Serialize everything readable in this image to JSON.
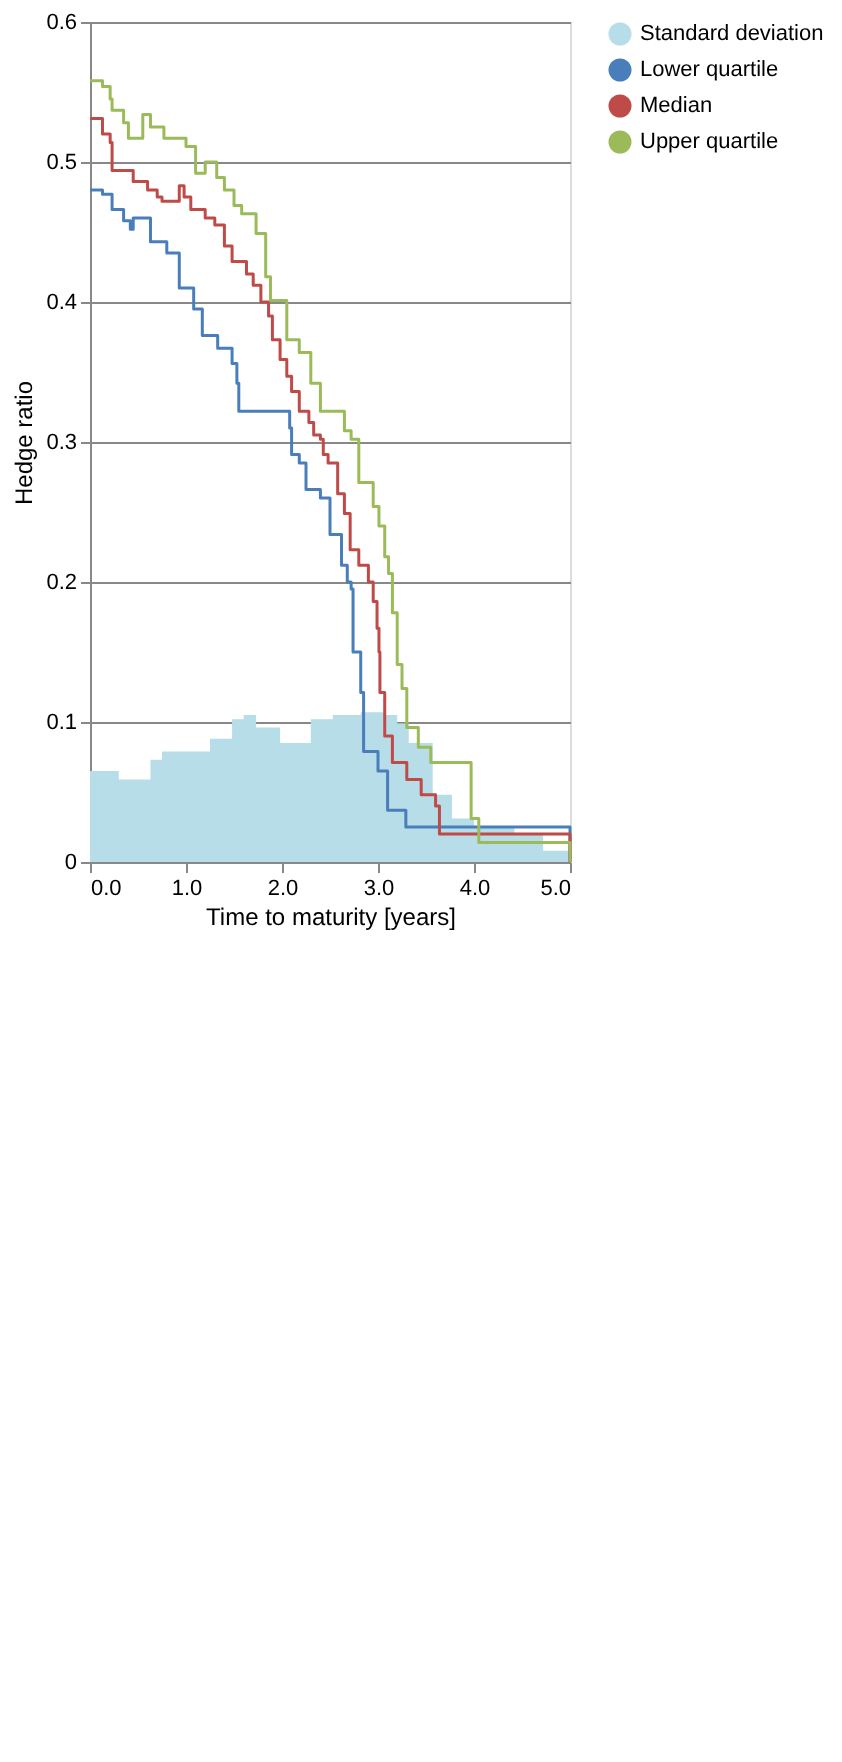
{
  "chart_data": {
    "type": "step",
    "xlabel": "Time to maturity [years]",
    "ylabel": "Hedge ratio",
    "xlim": [
      0,
      5
    ],
    "ylim": [
      0,
      0.6
    ],
    "xticks": [
      {
        "value": 0,
        "label": "0.0"
      },
      {
        "value": 1,
        "label": "1.0"
      },
      {
        "value": 2,
        "label": "2.0"
      },
      {
        "value": 3,
        "label": "3.0"
      },
      {
        "value": 4,
        "label": "4.0"
      },
      {
        "value": 5,
        "label": "5.0"
      }
    ],
    "yticks": [
      0,
      0.1,
      0.2,
      0.3,
      0.4,
      0.5,
      0.6
    ],
    "grid": "y",
    "legend": "right",
    "line_style": "solid",
    "series": [
      {
        "name": "Standard deviation",
        "type": "area",
        "color": "#b7dde8",
        "x": [
          0,
          0.3,
          0.63,
          0.75,
          1.1,
          1.25,
          1.48,
          1.6,
          1.73,
          1.98,
          2.3,
          2.53,
          2.82,
          3.07,
          3.2,
          3.32,
          3.57,
          3.77,
          4.0,
          4.42,
          4.72,
          5.0
        ],
        "values": [
          0.065,
          0.059,
          0.073,
          0.079,
          0.079,
          0.088,
          0.102,
          0.105,
          0.096,
          0.085,
          0.102,
          0.105,
          0.107,
          0.105,
          0.099,
          0.085,
          0.048,
          0.031,
          0.025,
          0.02,
          0.008,
          0
        ]
      },
      {
        "name": "Lower quartile",
        "color": "#4a7ebb",
        "x": [
          0,
          0.13,
          0.23,
          0.35,
          0.42,
          0.45,
          0.63,
          0.8,
          0.93,
          1.08,
          1.17,
          1.33,
          1.48,
          1.53,
          1.55,
          2.08,
          2.1,
          2.18,
          2.25,
          2.4,
          2.5,
          2.62,
          2.68,
          2.72,
          2.74,
          2.82,
          2.85,
          3.0,
          3.1,
          3.29,
          5.0
        ],
        "values": [
          0.48,
          0.477,
          0.466,
          0.458,
          0.452,
          0.46,
          0.443,
          0.435,
          0.41,
          0.395,
          0.376,
          0.367,
          0.356,
          0.342,
          0.322,
          0.31,
          0.291,
          0.285,
          0.266,
          0.26,
          0.234,
          0.212,
          0.2,
          0.195,
          0.15,
          0.121,
          0.079,
          0.065,
          0.037,
          0.025,
          0
        ]
      },
      {
        "name": "Median",
        "color": "#be4b48",
        "x": [
          0,
          0.13,
          0.21,
          0.23,
          0.45,
          0.6,
          0.7,
          0.75,
          0.93,
          0.98,
          1.05,
          1.2,
          1.3,
          1.4,
          1.48,
          1.63,
          1.7,
          1.78,
          1.86,
          1.9,
          1.98,
          2.05,
          2.1,
          2.18,
          2.28,
          2.33,
          2.4,
          2.43,
          2.48,
          2.58,
          2.65,
          2.71,
          2.8,
          2.9,
          2.95,
          2.99,
          3.01,
          3.02,
          3.07,
          3.15,
          3.3,
          3.45,
          3.6,
          3.64,
          5.0
        ],
        "values": [
          0.531,
          0.52,
          0.514,
          0.494,
          0.486,
          0.48,
          0.475,
          0.472,
          0.483,
          0.475,
          0.466,
          0.46,
          0.455,
          0.44,
          0.429,
          0.42,
          0.412,
          0.4,
          0.39,
          0.373,
          0.359,
          0.347,
          0.336,
          0.322,
          0.314,
          0.305,
          0.302,
          0.291,
          0.285,
          0.263,
          0.249,
          0.223,
          0.212,
          0.2,
          0.186,
          0.167,
          0.15,
          0.121,
          0.09,
          0.071,
          0.059,
          0.048,
          0.04,
          0.02,
          0
        ]
      },
      {
        "name": "Upper quartile",
        "color": "#9bbb59",
        "x": [
          0,
          0.13,
          0.21,
          0.23,
          0.35,
          0.4,
          0.55,
          0.63,
          0.77,
          0.93,
          1.0,
          1.1,
          1.2,
          1.32,
          1.4,
          1.5,
          1.58,
          1.73,
          1.83,
          1.88,
          2.05,
          2.18,
          2.3,
          2.4,
          2.65,
          2.72,
          2.8,
          2.95,
          3.01,
          3.07,
          3.11,
          3.15,
          3.2,
          3.25,
          3.3,
          3.42,
          3.55,
          3.97,
          4.05,
          5.0
        ],
        "values": [
          0.558,
          0.554,
          0.545,
          0.537,
          0.528,
          0.517,
          0.534,
          0.525,
          0.517,
          0.517,
          0.511,
          0.492,
          0.5,
          0.489,
          0.48,
          0.469,
          0.463,
          0.449,
          0.418,
          0.401,
          0.373,
          0.364,
          0.342,
          0.322,
          0.308,
          0.302,
          0.271,
          0.254,
          0.24,
          0.218,
          0.206,
          0.178,
          0.141,
          0.124,
          0.096,
          0.082,
          0.071,
          0.031,
          0.014,
          0
        ]
      }
    ]
  }
}
